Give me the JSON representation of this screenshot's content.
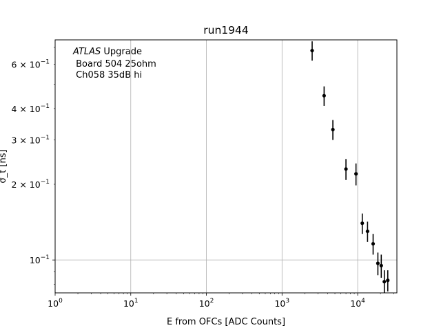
{
  "chart_data": {
    "type": "scatter",
    "title": "run1944",
    "xlabel": "E from OFCs [ADC Counts]",
    "ylabel": "σ_t [ns]",
    "xscale": "log",
    "yscale": "log",
    "xlim": [
      1,
      33000
    ],
    "ylim": [
      0.074,
      0.75
    ],
    "grid": "x-major, y-major",
    "x_ticks": [
      {
        "value": 1,
        "base": "10",
        "exp": "0"
      },
      {
        "value": 10,
        "base": "10",
        "exp": "1"
      },
      {
        "value": 100,
        "base": "10",
        "exp": "2"
      },
      {
        "value": 1000,
        "base": "10",
        "exp": "3"
      },
      {
        "value": 10000,
        "base": "10",
        "exp": "4"
      }
    ],
    "y_ticks": [
      {
        "value": 0.1,
        "mant": "10",
        "exp": "−1"
      },
      {
        "value": 0.2,
        "mant": "2 × 10",
        "exp": "−1"
      },
      {
        "value": 0.3,
        "mant": "3 × 10",
        "exp": "−1"
      },
      {
        "value": 0.4,
        "mant": "4 × 10",
        "exp": "−1"
      },
      {
        "value": 0.6,
        "mant": "6 × 10",
        "exp": "−1"
      }
    ],
    "annotation": {
      "italic": "ATLAS",
      "rest": " Upgrade",
      "line2": " Board 504 25ohm",
      "line3": " Ch058 35dB hi"
    },
    "series": [
      {
        "x": [
          2500,
          3600,
          4700,
          7000,
          9500,
          11500,
          13500,
          16000,
          18500,
          20500,
          22500,
          25000
        ],
        "y": [
          0.68,
          0.45,
          0.33,
          0.23,
          0.22,
          0.14,
          0.13,
          0.116,
          0.097,
          0.095,
          0.082,
          0.083
        ],
        "yerr": [
          0.06,
          0.04,
          0.03,
          0.022,
          0.022,
          0.013,
          0.012,
          0.011,
          0.01,
          0.01,
          0.009,
          0.008
        ]
      }
    ]
  }
}
